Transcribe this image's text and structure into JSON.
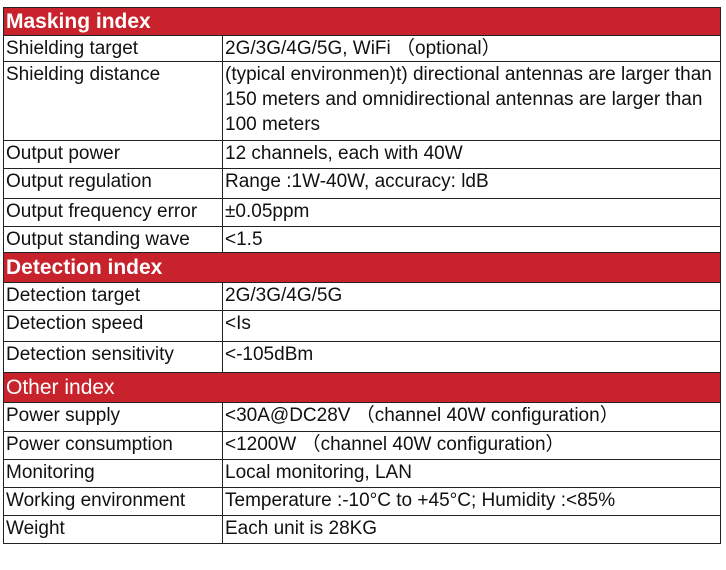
{
  "sections": [
    {
      "title": "Masking index",
      "bold": true,
      "rows": [
        {
          "label": "Shielding  target",
          "value": "2G/3G/4G/5G, WiFi （optional）"
        },
        {
          "label": "Shielding distance",
          "value": "(typical environmen)t) directional antennas are larger than 150 meters and omnidirectional antennas are larger than 100 meters"
        },
        {
          "label": "Output power",
          "value": "12 channels, each with 40W"
        },
        {
          "label": "Output regulation",
          "value": "Range :1W-40W, accuracy: ldB"
        },
        {
          "label": "Output frequency error",
          "value": "±0.05ppm"
        },
        {
          "label": "Output standing wave",
          "value": "<1.5"
        }
      ]
    },
    {
      "title": "Detection index",
      "bold": true,
      "rows": [
        {
          "label": "Detection target",
          "value": "2G/3G/4G/5G"
        },
        {
          "label": "Detection speed",
          "value": "<Is"
        },
        {
          "label": "Detection sensitivity",
          "value": "<-105dBm"
        }
      ]
    },
    {
      "title": "Other index",
      "bold": false,
      "rows": [
        {
          "label": "Power supply",
          "value": "<30A@DC28V （channel 40W configuration）"
        },
        {
          "label": "Power consumption",
          "value": "<1200W （channel 40W configuration）"
        },
        {
          "label": "Monitoring",
          "value": "Local monitoring, LAN"
        },
        {
          "label": "Working environment",
          "value": "Temperature :-10°C to +45°C; Humidity :<85%"
        },
        {
          "label": "Weight",
          "value": "Each unit is 28KG"
        }
      ]
    }
  ]
}
